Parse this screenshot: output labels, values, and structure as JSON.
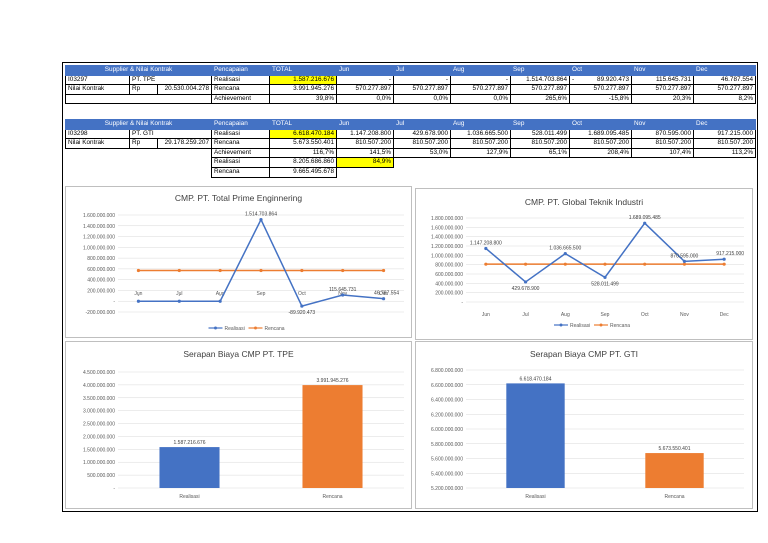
{
  "table1": {
    "header": [
      "Supplier & Nilai Kontrak",
      "Pencapaian",
      "TOTAL",
      "Jun",
      "Jul",
      "Aug",
      "Sep",
      "Oct",
      "Nov",
      "Dec"
    ],
    "code": "I03297",
    "supplier": "PT. TPE",
    "nilai_label": "Nilai Kontrak",
    "currency": "Rp",
    "nilai_value": "20.530.004.278",
    "rows": [
      {
        "label": "Realisasi",
        "total": "1.587.216.676",
        "jun": "-",
        "jul": "-",
        "aug": "-",
        "sep": "1.514.703.864",
        "oct_prefix": "-",
        "oct": "89.920.473",
        "nov": "115.645.731",
        "dec": "46.787.554"
      },
      {
        "label": "Rencana",
        "total": "3.991.945.276",
        "jun": "570.277.897",
        "jul": "570.277.897",
        "aug": "570.277.897",
        "sep": "570.277.897",
        "oct_prefix": "",
        "oct": "570.277.897",
        "nov": "570.277.897",
        "dec": "570.277.897"
      },
      {
        "label": "Achievement",
        "total": "39,8%",
        "jun": "0,0%",
        "jul": "0,0%",
        "aug": "0,0%",
        "sep": "265,6%",
        "oct_prefix": "",
        "oct": "-15,8%",
        "nov": "20,3%",
        "dec": "8,2%"
      }
    ]
  },
  "table2": {
    "header": [
      "Supplier & Nilai Kontrak",
      "Pencapaian",
      "TOTAL",
      "Jun",
      "Jul",
      "Aug",
      "Sep",
      "Oct",
      "Nov",
      "Dec"
    ],
    "code": "I03298",
    "supplier": "PT. GTI",
    "nilai_label": "Nilai Kontrak",
    "currency": "Rp",
    "nilai_value": "29.178.259.207",
    "rows": [
      {
        "label": "Realisasi",
        "total": "6.618.470.184",
        "jun": "1.147.208.800",
        "jul": "429.678.900",
        "aug": "1.036.665.500",
        "sep": "528.011.499",
        "oct": "1.689.095.485",
        "nov": "870.595.000",
        "dec": "917.215.000"
      },
      {
        "label": "Rencana",
        "total": "5.673.550.401",
        "jun": "810.507.200",
        "jul": "810.507.200",
        "aug": "810.507.200",
        "sep": "810.507.200",
        "oct": "810.507.200",
        "nov": "810.507.200",
        "dec": "810.507.200"
      },
      {
        "label": "Achievement",
        "total": "116,7%",
        "jun": "141,5%",
        "jul": "53,0%",
        "aug": "127,9%",
        "sep": "65,1%",
        "oct": "208,4%",
        "nov": "107,4%",
        "dec": "113,2%"
      }
    ],
    "extra": [
      {
        "label": "Realisasi",
        "value": "8.205.686.860",
        "pct": "84,9%"
      },
      {
        "label": "Rencana",
        "value": "9.665.495.678",
        "pct": ""
      }
    ]
  },
  "colors": {
    "header_blue": "#4472c4",
    "realisasi": "#4472c4",
    "rencana": "#ed7d31",
    "highlight": "#ffff00"
  },
  "chart_data": [
    {
      "type": "line",
      "title": "CMP. PT. Total Prime Enginnering",
      "categories": [
        "Jun",
        "Jul",
        "Aug",
        "Sep",
        "Oct",
        "Nov",
        "Dec"
      ],
      "ylim": [
        -200000000,
        1600000000
      ],
      "yticks": [
        "1.600.000.000",
        "1.400.000.000",
        "1.200.000.000",
        "1.000.000.000",
        "800.000.000",
        "600.000.000",
        "400.000.000",
        "200.000.000",
        "-",
        "-200.000.000"
      ],
      "series": [
        {
          "name": "Realisasi",
          "values": [
            0,
            0,
            0,
            1514703864,
            -89920473,
            115645731,
            46787554
          ],
          "labels": [
            "-",
            "-",
            "-",
            "1.514.703.864",
            "-89.920.473",
            "115.645.731",
            "46.787.554"
          ]
        },
        {
          "name": "Rencana",
          "values": [
            570277897,
            570277897,
            570277897,
            570277897,
            570277897,
            570277897,
            570277897
          ]
        }
      ],
      "legend": "bottom"
    },
    {
      "type": "line",
      "title": "CMP. PT. Global Teknik Industri",
      "categories": [
        "Jun",
        "Jul",
        "Aug",
        "Sep",
        "Oct",
        "Nov",
        "Dec"
      ],
      "ylim": [
        0,
        1800000000
      ],
      "yticks": [
        "1.800.000.000",
        "1.600.000.000",
        "1.400.000.000",
        "1.200.000.000",
        "1.000.000.000",
        "800.000.000",
        "600.000.000",
        "400.000.000",
        "200.000.000",
        "-"
      ],
      "series": [
        {
          "name": "Realisasi",
          "values": [
            1147208800,
            429678900,
            1036665500,
            528011499,
            1689095485,
            870595000,
            917215000
          ],
          "labels": [
            "1.147.208.800",
            "429.678.900",
            "1.036.665.500",
            "528.011.499",
            "1.689.095.485",
            "870.595.000",
            "917.215.000"
          ]
        },
        {
          "name": "Rencana",
          "values": [
            810507200,
            810507200,
            810507200,
            810507200,
            810507200,
            810507200,
            810507200
          ]
        }
      ],
      "legend": "bottom"
    },
    {
      "type": "bar",
      "title": "Serapan Biaya CMP PT. TPE",
      "categories": [
        "Realisasi",
        "Rencana"
      ],
      "values": [
        1587216676,
        3991945276
      ],
      "labels": [
        "1.587.216.676",
        "3.991.945.276"
      ],
      "ylim": [
        0,
        4500000000
      ],
      "yticks": [
        "4.500.000.000",
        "4.000.000.000",
        "3.500.000.000",
        "3.000.000.000",
        "2.500.000.000",
        "2.000.000.000",
        "1.500.000.000",
        "1.000.000.000",
        "500.000.000",
        "-"
      ]
    },
    {
      "type": "bar",
      "title": "Serapan Biaya CMP PT. GTI",
      "categories": [
        "Realisasi",
        "Rencana"
      ],
      "values": [
        6618470184,
        5673550401
      ],
      "labels": [
        "6.618.470.184",
        "5.673.550.401"
      ],
      "ylim": [
        5200000000,
        6800000000
      ],
      "yticks": [
        "6.800.000.000",
        "6.600.000.000",
        "6.400.000.000",
        "6.200.000.000",
        "6.000.000.000",
        "5.800.000.000",
        "5.600.000.000",
        "5.400.000.000",
        "5.200.000.000"
      ]
    }
  ]
}
